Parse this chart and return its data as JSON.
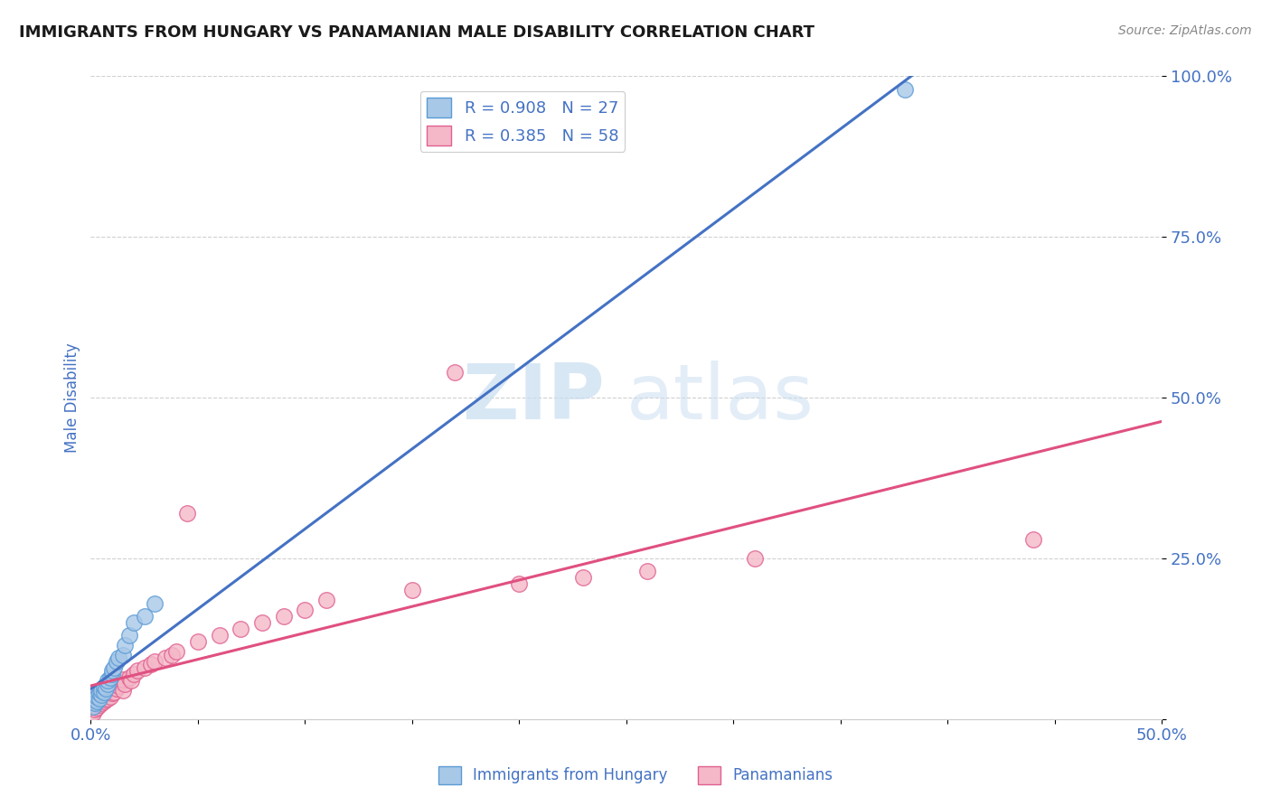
{
  "title": "IMMIGRANTS FROM HUNGARY VS PANAMANIAN MALE DISABILITY CORRELATION CHART",
  "source_text": "Source: ZipAtlas.com",
  "ylabel": "Male Disability",
  "xlim": [
    0.0,
    0.5
  ],
  "ylim": [
    0.0,
    1.0
  ],
  "xticks": [
    0.0,
    0.05,
    0.1,
    0.15,
    0.2,
    0.25,
    0.3,
    0.35,
    0.4,
    0.45,
    0.5
  ],
  "xticklabels": [
    "0.0%",
    "",
    "",
    "",
    "",
    "",
    "",
    "",
    "",
    "",
    "50.0%"
  ],
  "yticks": [
    0.0,
    0.25,
    0.5,
    0.75,
    1.0
  ],
  "yticklabels": [
    "",
    "25.0%",
    "50.0%",
    "75.0%",
    "100.0%"
  ],
  "blue_R": 0.908,
  "blue_N": 27,
  "pink_R": 0.385,
  "pink_N": 58,
  "blue_color": "#a8c8e8",
  "pink_color": "#f4b8c8",
  "blue_edge_color": "#5b9bd5",
  "pink_edge_color": "#e06090",
  "blue_line_color": "#4472c4",
  "pink_line_color": "#e05080",
  "legend_label_blue": "Immigrants from Hungary",
  "legend_label_pink": "Panamanians",
  "watermark_zip": "ZIP",
  "watermark_atlas": "atlas",
  "title_color": "#1a1a1a",
  "axis_label_color": "#4472c4",
  "tick_color": "#4472c4",
  "background_color": "#ffffff",
  "blue_scatter_x": [
    0.001,
    0.002,
    0.002,
    0.003,
    0.003,
    0.004,
    0.004,
    0.005,
    0.005,
    0.006,
    0.006,
    0.007,
    0.008,
    0.008,
    0.009,
    0.01,
    0.01,
    0.011,
    0.012,
    0.013,
    0.015,
    0.016,
    0.018,
    0.02,
    0.025,
    0.03,
    0.38
  ],
  "blue_scatter_y": [
    0.02,
    0.025,
    0.03,
    0.028,
    0.035,
    0.032,
    0.04,
    0.038,
    0.045,
    0.042,
    0.05,
    0.048,
    0.055,
    0.06,
    0.065,
    0.07,
    0.075,
    0.08,
    0.09,
    0.095,
    0.1,
    0.115,
    0.13,
    0.15,
    0.16,
    0.18,
    0.98
  ],
  "pink_scatter_x": [
    0.001,
    0.001,
    0.002,
    0.002,
    0.002,
    0.003,
    0.003,
    0.003,
    0.004,
    0.004,
    0.004,
    0.005,
    0.005,
    0.005,
    0.006,
    0.006,
    0.007,
    0.007,
    0.007,
    0.008,
    0.008,
    0.009,
    0.009,
    0.01,
    0.01,
    0.011,
    0.011,
    0.012,
    0.013,
    0.014,
    0.015,
    0.015,
    0.016,
    0.018,
    0.019,
    0.02,
    0.022,
    0.025,
    0.028,
    0.03,
    0.035,
    0.038,
    0.04,
    0.045,
    0.05,
    0.06,
    0.07,
    0.08,
    0.09,
    0.1,
    0.11,
    0.15,
    0.17,
    0.2,
    0.23,
    0.26,
    0.31,
    0.44
  ],
  "pink_scatter_y": [
    0.01,
    0.02,
    0.015,
    0.025,
    0.03,
    0.018,
    0.028,
    0.035,
    0.022,
    0.032,
    0.04,
    0.025,
    0.035,
    0.045,
    0.028,
    0.038,
    0.03,
    0.04,
    0.05,
    0.032,
    0.042,
    0.035,
    0.045,
    0.04,
    0.06,
    0.042,
    0.055,
    0.048,
    0.052,
    0.058,
    0.045,
    0.062,
    0.055,
    0.065,
    0.06,
    0.07,
    0.075,
    0.08,
    0.085,
    0.09,
    0.095,
    0.1,
    0.105,
    0.32,
    0.12,
    0.13,
    0.14,
    0.15,
    0.16,
    0.17,
    0.185,
    0.2,
    0.54,
    0.21,
    0.22,
    0.23,
    0.25,
    0.28
  ],
  "grid_color": "#d0d0d0",
  "grid_style": "--"
}
